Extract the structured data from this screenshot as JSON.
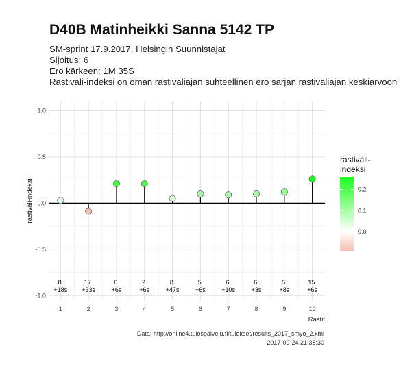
{
  "header": {
    "title": "D40B Matinheikki Sanna 5142 TP",
    "subtitle_lines": [
      "SM-sprint 17.9.2017, Helsingin Suunnistajat",
      "Sijoitus: 6",
      "Ero kärkeen: 1M 35S",
      "Rastiväli-indeksi on oman rastiväliajan suhteellinen ero sarjan rastiväliajan keskiarvoon"
    ]
  },
  "caption": {
    "source": "Data: http://online4.tulospalvelu.fi/tulokset/results_2017_smyo_2.xml",
    "timestamp": "2017-09-24 21:38:30"
  },
  "chart_data": {
    "type": "scatter",
    "style": "lollipop",
    "xlabel": "Rastit",
    "ylabel": "rastiväli-indeksi",
    "x": [
      1,
      2,
      3,
      4,
      5,
      6,
      7,
      8,
      9,
      10
    ],
    "values": [
      0.03,
      -0.09,
      0.21,
      0.21,
      0.05,
      0.1,
      0.09,
      0.1,
      0.12,
      0.26
    ],
    "rank_labels": [
      "8.",
      "17.",
      "6.",
      "2.",
      "8.",
      "5.",
      "6.",
      "6.",
      "5.",
      "15."
    ],
    "time_labels": [
      "+18s",
      "+33s",
      "+6s",
      "+6s",
      "+47s",
      "+6s",
      "+10s",
      "+3s",
      "+8s",
      "+6s"
    ],
    "xticks": [
      "1",
      "2",
      "3",
      "4",
      "5",
      "6",
      "7",
      "8",
      "9",
      "10"
    ],
    "yticks": [
      "1.0",
      "0.5",
      "0.0",
      "-0.5",
      "-1.0"
    ],
    "xlim": [
      0.6,
      10.45
    ],
    "ylim": [
      -1.05,
      1.1
    ],
    "grid": true,
    "legend": {
      "title_lines": [
        "rastiväli-",
        "indeksi"
      ],
      "ticks": [
        "0.2",
        "0.1",
        "0.0"
      ],
      "placement": "right",
      "colors": {
        "low": "#f8bfae",
        "mid": "#ffffff",
        "high": "#1aff1a"
      },
      "range": [
        -0.09,
        0.26
      ]
    }
  }
}
